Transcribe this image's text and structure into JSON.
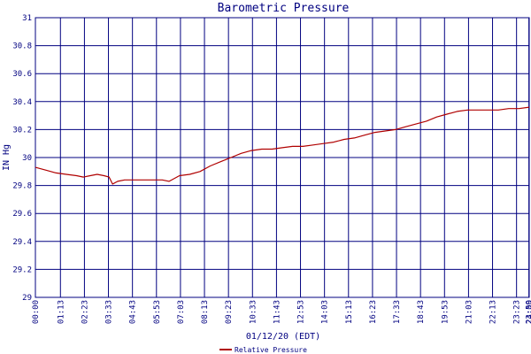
{
  "chart_data": {
    "type": "line",
    "title": "Barometric Pressure",
    "xlabel": "01/12/20 (EDT)",
    "ylabel": "IN Hg",
    "ylim": [
      29,
      31
    ],
    "yticks": [
      29,
      29.2,
      29.4,
      29.6,
      29.8,
      30,
      30.2,
      30.4,
      30.6,
      30.8,
      31
    ],
    "ytick_labels": [
      "29",
      "29.2",
      "29.4",
      "29.6",
      "29.8",
      "30",
      "30.2",
      "30.4",
      "30.6",
      "30.8",
      "31"
    ],
    "xlim": [
      0,
      1440
    ],
    "xticks": [
      0,
      73,
      143,
      213,
      283,
      353,
      423,
      493,
      563,
      633,
      703,
      773,
      843,
      913,
      983,
      1053,
      1123,
      1193,
      1263,
      1333,
      1403,
      1439,
      1440
    ],
    "xtick_labels": [
      "00:00",
      "01:13",
      "02:23",
      "03:33",
      "04:43",
      "05:53",
      "07:03",
      "08:13",
      "09:23",
      "10:33",
      "11:43",
      "12:53",
      "14:03",
      "15:13",
      "16:23",
      "17:33",
      "18:43",
      "19:53",
      "21:03",
      "22:13",
      "23:23",
      "23:59",
      "24:00"
    ],
    "grid": true,
    "legend": "bottom",
    "colors": {
      "series": "#b00000",
      "grid": "#000080",
      "text": "#000080",
      "frame": "#000080"
    },
    "series": [
      {
        "name": "Relative Pressure",
        "x": [
          0,
          30,
          60,
          90,
          120,
          140,
          160,
          180,
          200,
          215,
          225,
          240,
          260,
          300,
          340,
          370,
          390,
          420,
          450,
          480,
          510,
          540,
          570,
          600,
          630,
          660,
          690,
          720,
          750,
          780,
          810,
          840,
          870,
          900,
          930,
          960,
          990,
          1020,
          1050,
          1080,
          1110,
          1140,
          1170,
          1200,
          1230,
          1260,
          1290,
          1320,
          1350,
          1380,
          1410,
          1440
        ],
        "y": [
          29.93,
          29.91,
          29.89,
          29.88,
          29.87,
          29.86,
          29.87,
          29.88,
          29.87,
          29.86,
          29.81,
          29.83,
          29.84,
          29.84,
          29.84,
          29.84,
          29.83,
          29.87,
          29.88,
          29.9,
          29.94,
          29.97,
          30.0,
          30.03,
          30.05,
          30.06,
          30.06,
          30.07,
          30.08,
          30.08,
          30.09,
          30.1,
          30.11,
          30.13,
          30.14,
          30.16,
          30.18,
          30.19,
          30.2,
          30.22,
          30.24,
          30.26,
          30.29,
          30.31,
          30.33,
          30.34,
          30.34,
          30.34,
          30.34,
          30.35,
          30.35,
          30.36
        ]
      }
    ]
  }
}
